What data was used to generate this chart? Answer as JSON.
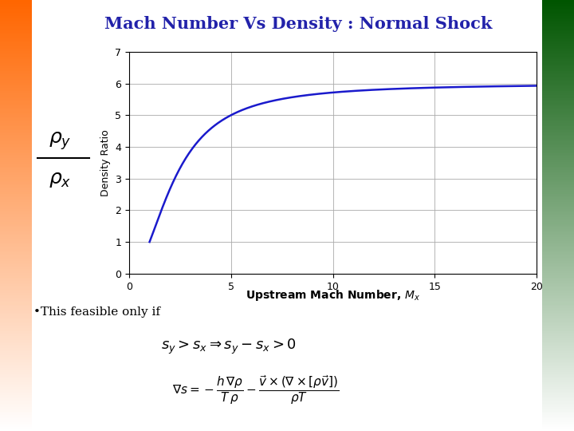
{
  "title": "Mach Number Vs Density : Normal Shock",
  "title_color": "#2222aa",
  "title_fontsize": 15,
  "xlabel": "Upstream Mach Number, $M_x$",
  "ylabel": "Density Ratio",
  "xlim": [
    0,
    20
  ],
  "ylim": [
    0,
    7
  ],
  "xticks": [
    0,
    5,
    10,
    15,
    20
  ],
  "yticks": [
    0,
    1,
    2,
    3,
    4,
    5,
    6,
    7
  ],
  "line_color": "#1a1acc",
  "line_width": 1.8,
  "gamma": 1.4,
  "M_start": 1.0,
  "M_end": 20.0,
  "grid": true,
  "grid_color": "#aaaaaa",
  "background_color": "#ffffff",
  "bullet_text": "•This feasible only if",
  "fig_width": 7.2,
  "fig_height": 5.4,
  "dpi": 100
}
